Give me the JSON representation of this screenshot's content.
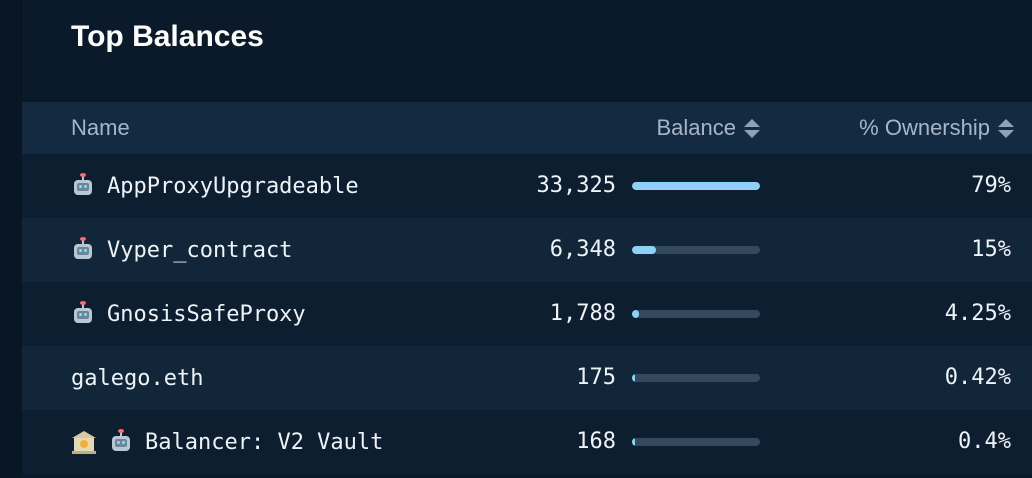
{
  "title": "Top Balances",
  "columns": {
    "name": "Name",
    "balance": "Balance",
    "ownership": "% Ownership"
  },
  "rows": [
    {
      "name": "AppProxyUpgradeable",
      "icons": [
        "robot-icon"
      ],
      "balance": "33,325",
      "bar_fraction": 1.0,
      "ownership": "79%"
    },
    {
      "name": "Vyper_contract",
      "icons": [
        "robot-icon"
      ],
      "balance": "6,348",
      "bar_fraction": 0.19,
      "ownership": "15%"
    },
    {
      "name": "GnosisSafeProxy",
      "icons": [
        "robot-icon"
      ],
      "balance": "1,788",
      "bar_fraction": 0.054,
      "ownership": "4.25%"
    },
    {
      "name": "galego.eth",
      "icons": [],
      "balance": "175",
      "bar_fraction": 0.005,
      "ownership": "0.42%"
    },
    {
      "name": "Balancer: V2 Vault",
      "icons": [
        "bank-icon",
        "robot-icon"
      ],
      "balance": "168",
      "bar_fraction": 0.005,
      "ownership": "0.4%"
    }
  ],
  "colors": {
    "bar_fill": "#8fd0f5",
    "bar_track": "#34495c",
    "background": "#0b1a2b",
    "header_bg": "#132a40"
  }
}
